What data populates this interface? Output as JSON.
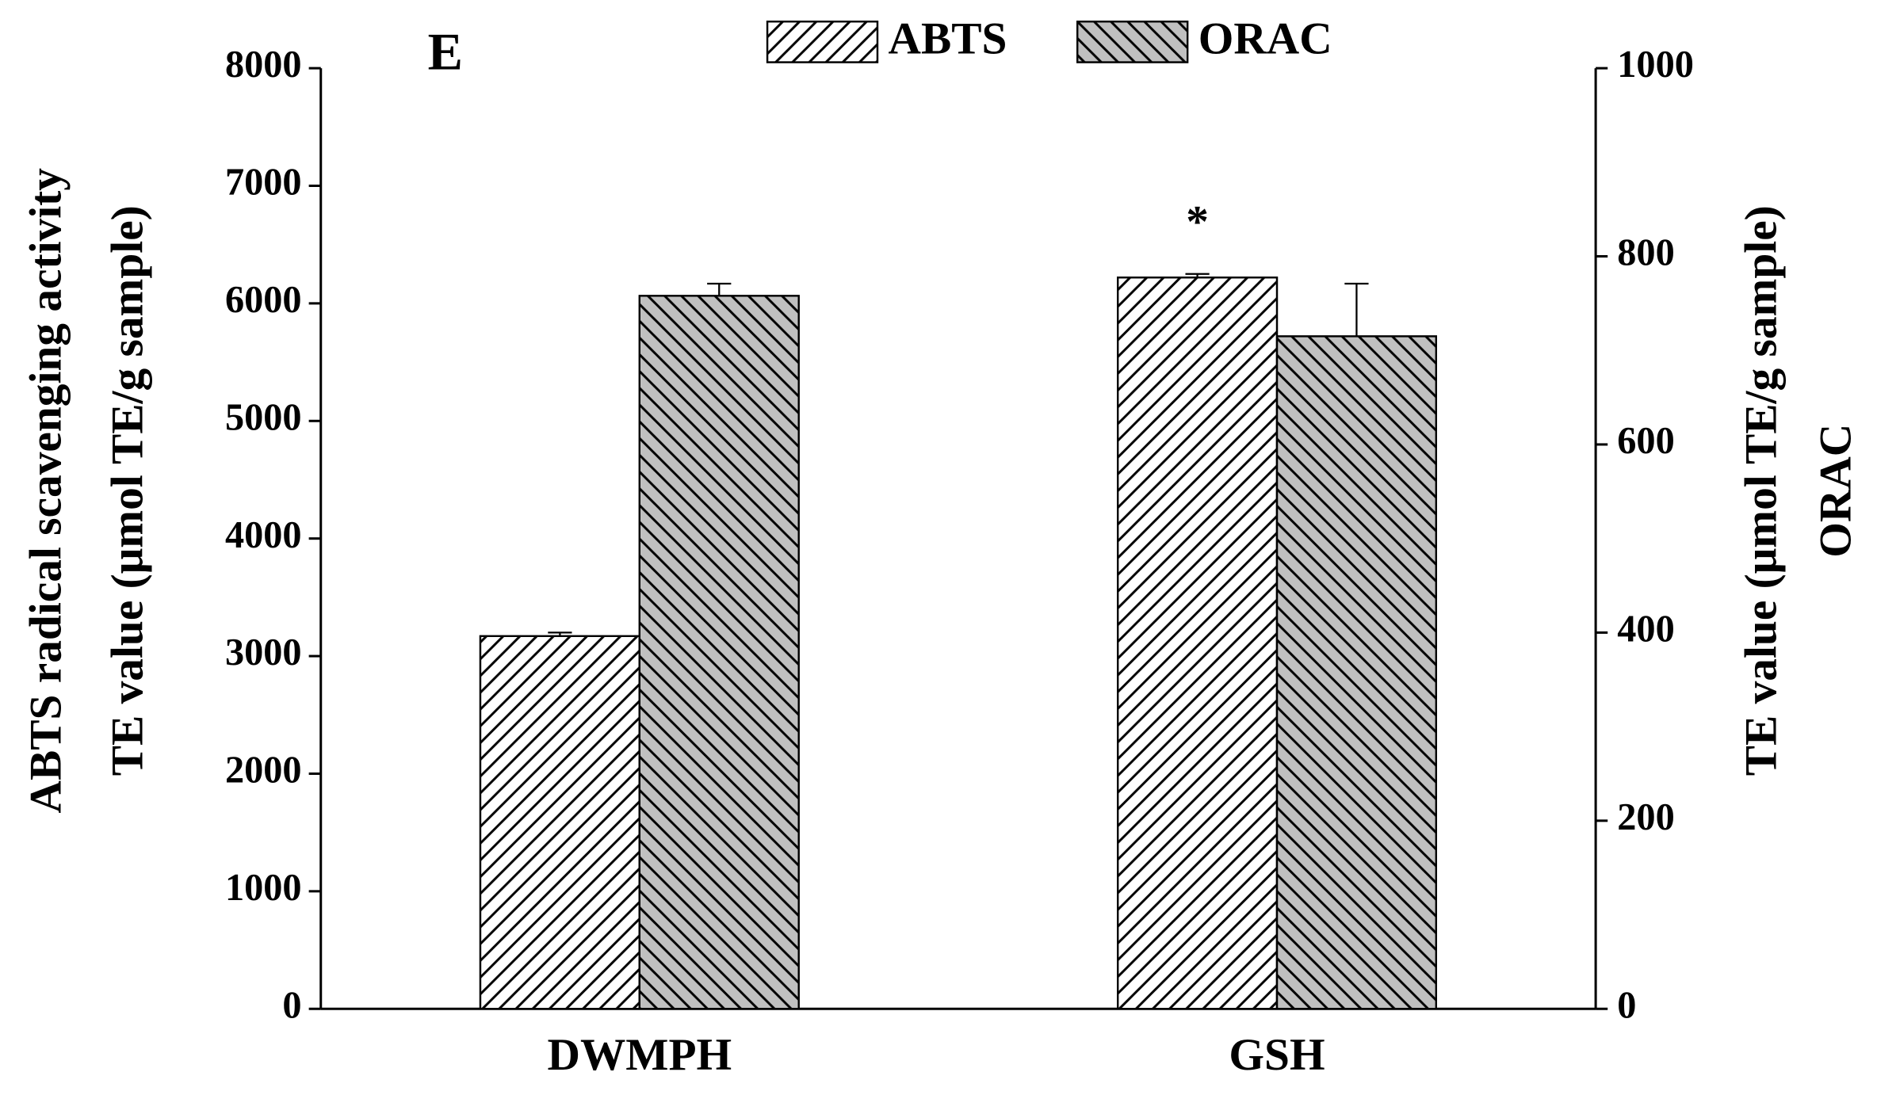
{
  "chart_data": {
    "type": "bar",
    "panel_label": "E",
    "annotations": [
      "*"
    ],
    "categories": [
      "DWMPH",
      "GSH"
    ],
    "y_label": [
      "ABTS radical scavenging activity",
      "TE value (μmol TE/g sample)"
    ],
    "y2_label": [
      "TE value (μmol TE/g sample)",
      "ORAC"
    ],
    "series": [
      {
        "name": "ABTS",
        "color": "#ffffff",
        "hatch": "/",
        "values": [
          3170,
          6220
        ],
        "errors": [
          30,
          30
        ],
        "axis": "y"
      },
      {
        "name": "ORAC",
        "color": "#c0c0c0",
        "hatch": "\\",
        "values": [
          758,
          715
        ],
        "errors": [
          13,
          56
        ],
        "axis": "y2"
      }
    ],
    "ylim": [
      0,
      8000
    ],
    "yticks": [
      0,
      1000,
      2000,
      3000,
      4000,
      5000,
      6000,
      7000,
      8000
    ],
    "y2lim": [
      0,
      1000
    ],
    "y2ticks": [
      0,
      200,
      400,
      600,
      800,
      1000
    ],
    "legend": "top",
    "grid": false
  }
}
